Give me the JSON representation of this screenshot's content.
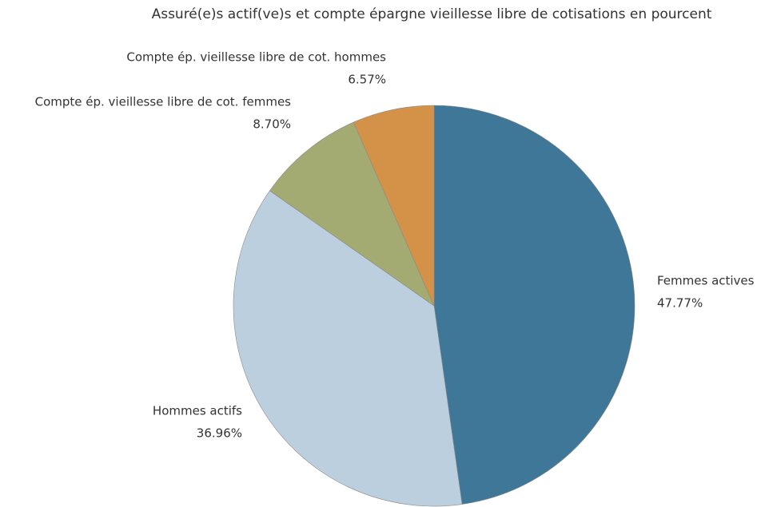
{
  "chart_data": {
    "type": "pie",
    "title": "Assuré(e)s actif(ve)s et compte épargne vieillesse libre de cotisations en pourcent",
    "categories": [
      "Femmes actives",
      "Hommes actifs",
      "Compte ép. vieillesse libre de cot. femmes",
      "Compte ép. vieillesse libre de cot. hommes"
    ],
    "values": [
      47.77,
      36.96,
      8.7,
      6.57
    ],
    "value_labels": [
      "47.77%",
      "36.96%",
      "8.70%",
      "6.57%"
    ],
    "colors": [
      "#3f7799",
      "#bccfdf",
      "#a4ab72",
      "#d39248"
    ]
  }
}
